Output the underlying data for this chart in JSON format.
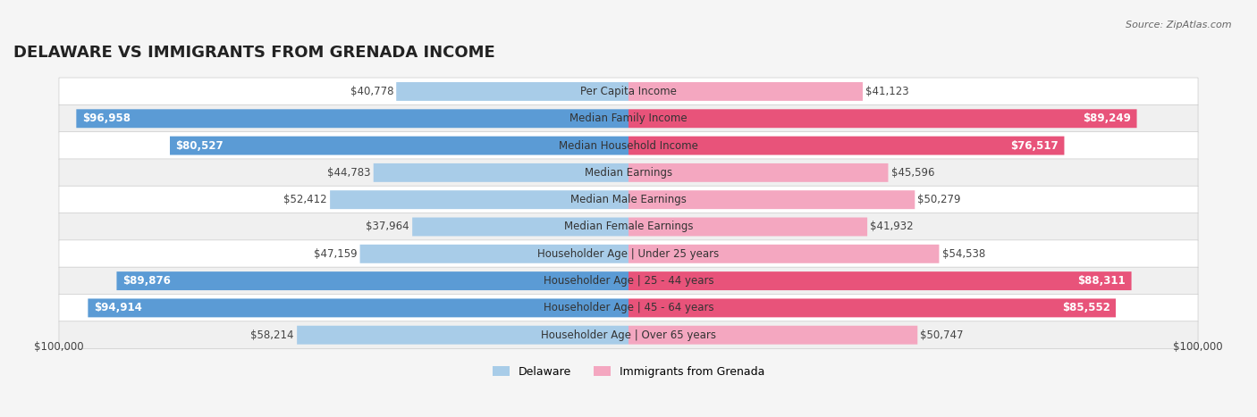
{
  "title": "DELAWARE VS IMMIGRANTS FROM GRENADA INCOME",
  "source": "Source: ZipAtlas.com",
  "categories": [
    "Per Capita Income",
    "Median Family Income",
    "Median Household Income",
    "Median Earnings",
    "Median Male Earnings",
    "Median Female Earnings",
    "Householder Age | Under 25 years",
    "Householder Age | 25 - 44 years",
    "Householder Age | 45 - 64 years",
    "Householder Age | Over 65 years"
  ],
  "delaware_values": [
    40778,
    96958,
    80527,
    44783,
    52412,
    37964,
    47159,
    89876,
    94914,
    58214
  ],
  "grenada_values": [
    41123,
    89249,
    76517,
    45596,
    50279,
    41932,
    54538,
    88311,
    85552,
    50747
  ],
  "delaware_labels": [
    "$40,778",
    "$96,958",
    "$80,527",
    "$44,783",
    "$52,412",
    "$37,964",
    "$47,159",
    "$89,876",
    "$94,914",
    "$58,214"
  ],
  "grenada_labels": [
    "$41,123",
    "$89,249",
    "$76,517",
    "$45,596",
    "$50,279",
    "$41,932",
    "$54,538",
    "$88,311",
    "$85,552",
    "$50,747"
  ],
  "max_value": 100000,
  "delaware_bar_color_light": "#a8cce8",
  "delaware_bar_color_dark": "#5b9bd5",
  "grenada_bar_color_light": "#f4a7c0",
  "grenada_bar_color_dark": "#e8537a",
  "delaware_dark_threshold": 60000,
  "grenada_dark_threshold": 70000,
  "bg_color": "#f5f5f5",
  "row_bg_light": "#f0f0f0",
  "row_bg_white": "#ffffff",
  "title_fontsize": 13,
  "label_fontsize": 8.5,
  "legend_fontsize": 9,
  "xlabel_left": "$100,000",
  "xlabel_right": "$100,000"
}
